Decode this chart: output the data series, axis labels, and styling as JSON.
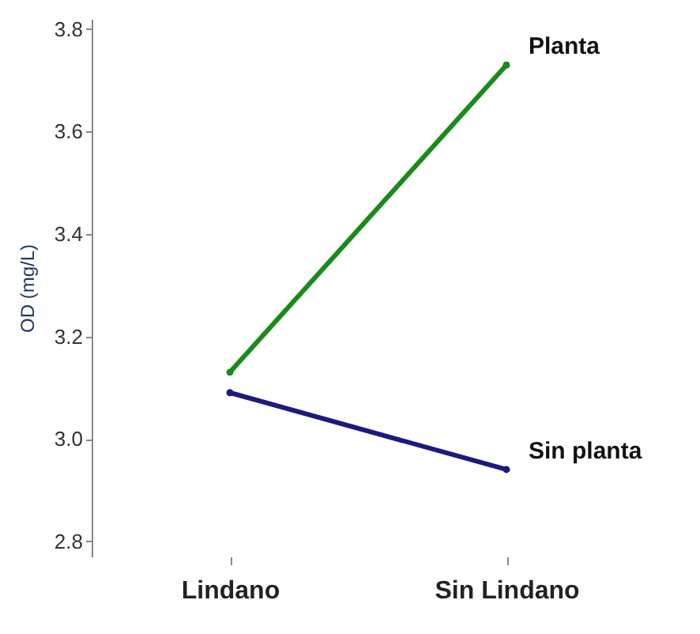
{
  "chart_data": {
    "type": "line",
    "ylabel": "OD (mg/L)",
    "categories": [
      "Lindano",
      "Sin Lindano"
    ],
    "series": [
      {
        "name": "Planta",
        "color": "#1a8a1a",
        "values": [
          3.13,
          3.73
        ]
      },
      {
        "name": "Sin planta",
        "color": "#1a1a80",
        "values": [
          3.09,
          2.94
        ]
      }
    ],
    "ylim": [
      2.77,
      3.82
    ],
    "yticks": [
      2.8,
      {
        "value": 3,
        "label": "3.0"
      },
      3.2,
      3.4,
      3.6,
      3.8
    ],
    "grid": false,
    "legend": false,
    "marker": "circle"
  }
}
